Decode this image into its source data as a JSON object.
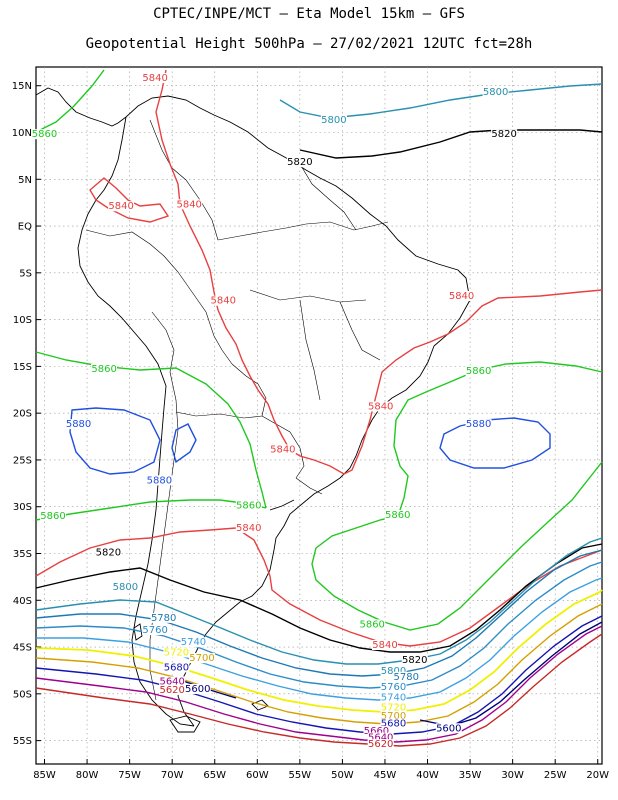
{
  "header": {
    "line1": "CPTEC/INPE/MCT –  Eta Model 15km – GFS",
    "line2": "Geopotential Height 500hPa – 27/02/2021 12UTC fct=28h"
  },
  "axes": {
    "lat_labels": [
      "15N",
      "10N",
      "5N",
      "EQ",
      "5S",
      "10S",
      "15S",
      "20S",
      "25S",
      "30S",
      "35S",
      "40S",
      "45S",
      "50S",
      "55S"
    ],
    "lon_labels": [
      "85W",
      "80W",
      "75W",
      "70W",
      "65W",
      "60W",
      "55W",
      "50W",
      "45W",
      "40W",
      "35W",
      "30W",
      "25W",
      "20W"
    ]
  },
  "colors": {
    "c5580": "#c82828",
    "c5600": "#00007a",
    "c5640": "#a0008c",
    "c5680": "#1414b4",
    "c5700": "#d4a000",
    "c5720": "#f0f000",
    "c5740": "#3ca0e0",
    "c5760": "#2c8cc8",
    "c5780": "#1e78b4",
    "c5800": "#2890b0",
    "c5820": "#000000",
    "c5840": "#e84040",
    "c5860": "#20c820",
    "c5880": "#2050e0",
    "coast": "#000000",
    "grid": "#999999"
  },
  "contour_labels": [
    {
      "text": "5800",
      "color": "#2890b0",
      "lon": -32,
      "lat": 14
    },
    {
      "text": "5800",
      "color": "#2890b0",
      "lon": -51,
      "lat": 11
    },
    {
      "text": "5820",
      "color": "#000000",
      "lon": -31,
      "lat": 9.5
    },
    {
      "text": "5820",
      "color": "#000000",
      "lon": -55,
      "lat": 6.5
    },
    {
      "text": "5840",
      "color": "#e84040",
      "lon": -72,
      "lat": 15.5
    },
    {
      "text": "5860",
      "color": "#20c820",
      "lon": -85,
      "lat": 9.5
    },
    {
      "text": "5840",
      "color": "#e84040",
      "lon": -76,
      "lat": 1.8
    },
    {
      "text": "5840",
      "color": "#e84040",
      "lon": -68,
      "lat": 2
    },
    {
      "text": "5840",
      "color": "#e84040",
      "lon": -64,
      "lat": -8.3
    },
    {
      "text": "5840",
      "color": "#e84040",
      "lon": -36,
      "lat": -7.8
    },
    {
      "text": "5860",
      "color": "#20c820",
      "lon": -78,
      "lat": -15.6
    },
    {
      "text": "5860",
      "color": "#20c820",
      "lon": -34,
      "lat": -15.8
    },
    {
      "text": "5880",
      "color": "#2050e0",
      "lon": -81,
      "lat": -21.5
    },
    {
      "text": "5880",
      "color": "#2050e0",
      "lon": -34,
      "lat": -21.5
    },
    {
      "text": "5840",
      "color": "#e84040",
      "lon": -45.5,
      "lat": -19.6
    },
    {
      "text": "5840",
      "color": "#e84040",
      "lon": -57,
      "lat": -24.2
    },
    {
      "text": "5880",
      "color": "#2050e0",
      "lon": -71.5,
      "lat": -27.5
    },
    {
      "text": "5860",
      "color": "#20c820",
      "lon": -84,
      "lat": -31.3
    },
    {
      "text": "5860",
      "color": "#20c820",
      "lon": -61,
      "lat": -30.2
    },
    {
      "text": "5860",
      "color": "#20c820",
      "lon": -43.5,
      "lat": -31.2
    },
    {
      "text": "5840",
      "color": "#e84040",
      "lon": -61,
      "lat": -32.6
    },
    {
      "text": "5820",
      "color": "#000000",
      "lon": -77.5,
      "lat": -35.2
    },
    {
      "text": "5800",
      "color": "#2890b0",
      "lon": -75.5,
      "lat": -38.9
    },
    {
      "text": "5780",
      "color": "#1e78b4",
      "lon": -71,
      "lat": -42.2
    },
    {
      "text": "5760",
      "color": "#2c8cc8",
      "lon": -72,
      "lat": -43.5
    },
    {
      "text": "5740",
      "color": "#3ca0e0",
      "lon": -67.5,
      "lat": -44.8
    },
    {
      "text": "5720",
      "color": "#f0f000",
      "lon": -69.5,
      "lat": -45.9
    },
    {
      "text": "5700",
      "color": "#d4a000",
      "lon": -66.5,
      "lat": -46.5
    },
    {
      "text": "5680",
      "color": "#1414b4",
      "lon": -69.5,
      "lat": -47.5
    },
    {
      "text": "5640",
      "color": "#a0008c",
      "lon": -70,
      "lat": -49
    },
    {
      "text": "5620",
      "color": "#c82828",
      "lon": -70,
      "lat": -49.9
    },
    {
      "text": "5600",
      "color": "#00007a",
      "lon": -67,
      "lat": -49.8
    },
    {
      "text": "5820",
      "color": "#000000",
      "lon": -41.5,
      "lat": -46.7
    },
    {
      "text": "5840",
      "color": "#e84040",
      "lon": -45,
      "lat": -45.1
    },
    {
      "text": "5860",
      "color": "#20c820",
      "lon": -46.5,
      "lat": -42.9
    },
    {
      "text": "5800",
      "color": "#2890b0",
      "lon": -44,
      "lat": -47.9
    },
    {
      "text": "5780",
      "color": "#1e78b4",
      "lon": -42.5,
      "lat": -48.5
    },
    {
      "text": "5760",
      "color": "#2c8cc8",
      "lon": -44,
      "lat": -49.6
    },
    {
      "text": "5740",
      "color": "#3ca0e0",
      "lon": -44,
      "lat": -50.7
    },
    {
      "text": "5720",
      "color": "#f0f000",
      "lon": -44,
      "lat": -51.8
    },
    {
      "text": "5700",
      "color": "#d4a000",
      "lon": -44,
      "lat": -52.7
    },
    {
      "text": "5680",
      "color": "#1414b4",
      "lon": -44,
      "lat": -53.5
    },
    {
      "text": "5660",
      "color": "#a0008c",
      "lon": -46,
      "lat": -54.3
    },
    {
      "text": "5640",
      "color": "#a0008c",
      "lon": -45.5,
      "lat": -55
    },
    {
      "text": "5620",
      "color": "#c82828",
      "lon": -45.5,
      "lat": -55.7
    },
    {
      "text": "5600",
      "color": "#00007a",
      "lon": -37.5,
      "lat": -54
    }
  ]
}
